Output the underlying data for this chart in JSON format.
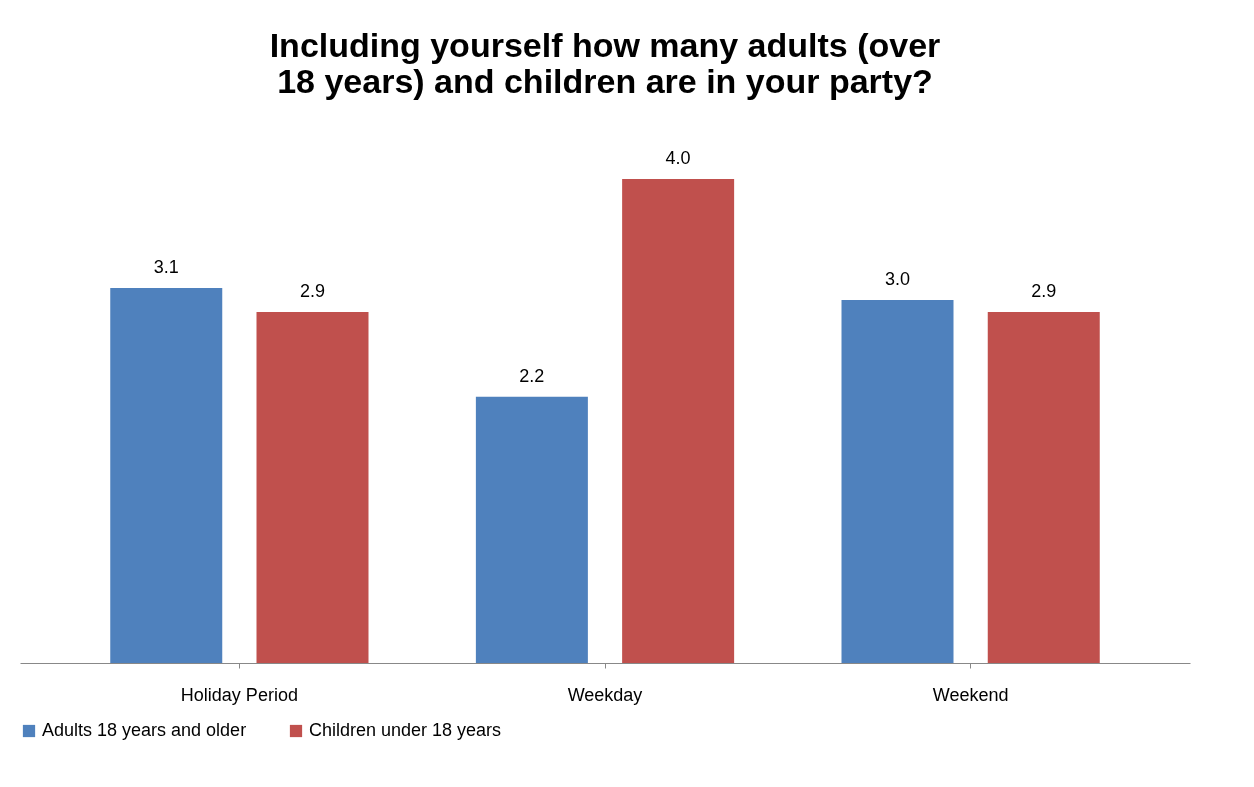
{
  "chart_data": {
    "type": "bar",
    "title": "Including yourself how many adults (over 18 years) and children are in your party?",
    "categories": [
      "Holiday Period",
      "Weekday",
      "Weekend"
    ],
    "series": [
      {
        "name": "Adults 18 years and older",
        "color": "#4f81bd",
        "values": [
          3.1,
          2.2,
          3.0
        ],
        "value_labels": [
          "3.1",
          "2.2",
          "3.0"
        ]
      },
      {
        "name": "Children under 18 years",
        "color": "#c0504d",
        "values": [
          2.9,
          4.0,
          2.9
        ],
        "value_labels": [
          "2.9",
          "4.0",
          "2.9"
        ]
      }
    ],
    "legend": "bottom",
    "grid": false
  }
}
